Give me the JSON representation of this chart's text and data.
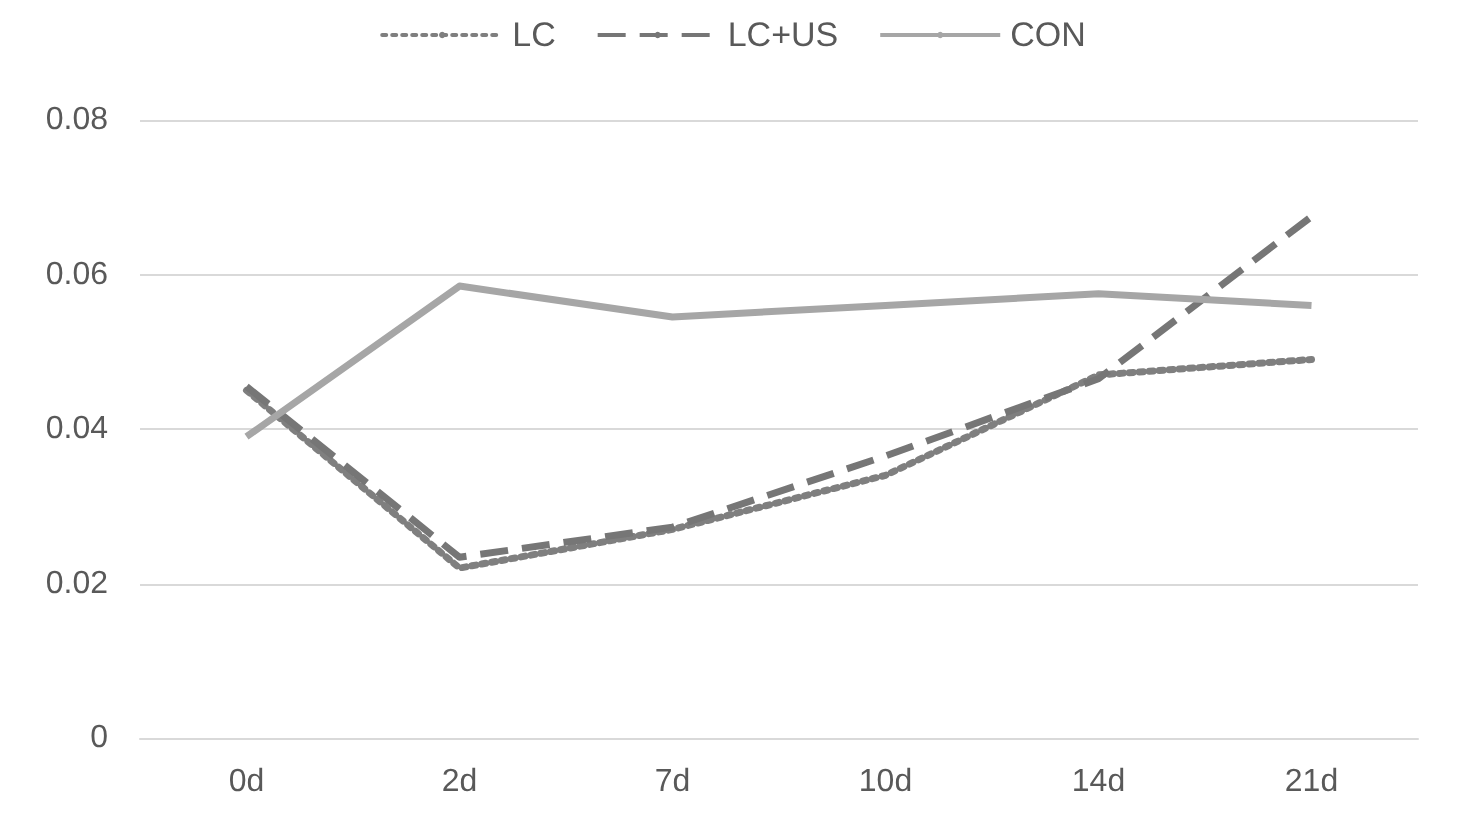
{
  "chart_data": {
    "type": "line",
    "categories": [
      "0d",
      "2d",
      "7d",
      "10d",
      "14d",
      "21d"
    ],
    "series": [
      {
        "name": "LC",
        "color": "#7f7f7f",
        "line_style": "dotted",
        "values": [
          0.045,
          0.022,
          0.027,
          0.034,
          0.047,
          0.049
        ]
      },
      {
        "name": "LC+US",
        "color": "#767676",
        "line_style": "dashed",
        "values": [
          0.0455,
          0.0234,
          0.0273,
          0.0365,
          0.0465,
          0.0675
        ]
      },
      {
        "name": "CON",
        "color": "#a6a6a6",
        "line_style": "solid",
        "values": [
          0.039,
          0.0585,
          0.0545,
          0.056,
          0.0575,
          0.056
        ]
      }
    ],
    "ylim": [
      0,
      0.08
    ],
    "yticks": [
      0,
      0.02,
      0.04,
      0.06,
      0.08
    ],
    "grid": "y",
    "legend": "top",
    "marker": "none"
  }
}
